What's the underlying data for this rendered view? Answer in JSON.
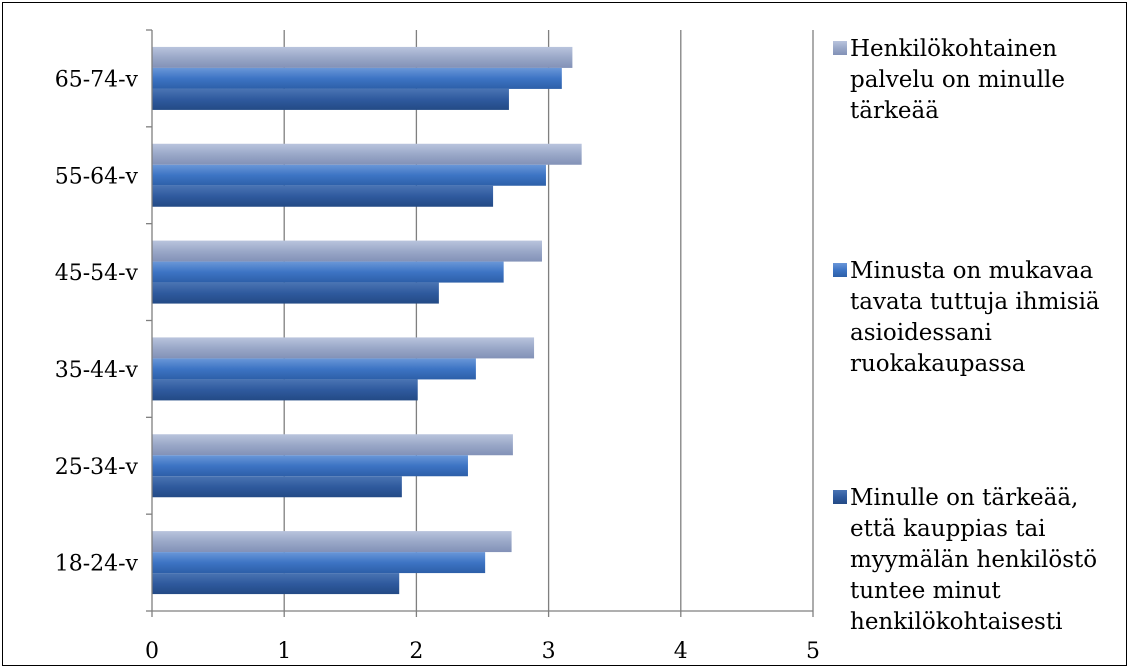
{
  "chart_data": {
    "type": "bar",
    "orientation": "horizontal",
    "categories": [
      "18-24-v",
      "25-34-v",
      "35-44-v",
      "45-54-v",
      "55-64-v",
      "65-74-v"
    ],
    "series": [
      {
        "name": "Henkilökohtainen palvelu on minulle tärkeää",
        "legend_lines": [
          "Henkilökohtainen",
          "palvelu on minulle",
          "tärkeää"
        ],
        "color": "#9aa8c8",
        "values": [
          2.72,
          2.73,
          2.89,
          2.95,
          3.25,
          3.18
        ]
      },
      {
        "name": "Minusta on mukavaa tavata tuttuja ihmisiä asioidessani ruokakaupassa",
        "legend_lines": [
          "Minusta on mukavaa",
          "tavata tuttuja ihmisiä",
          "asioidessani",
          "ruokakaupassa"
        ],
        "color": "#3d74c4",
        "values": [
          2.52,
          2.39,
          2.45,
          2.66,
          2.98,
          3.1
        ]
      },
      {
        "name": "Minulle on tärkeää, että kauppias tai myymälän henkilöstö tuntee minut henkilökohtaisesti",
        "legend_lines": [
          "Minulle on tärkeää,",
          "että kauppias tai",
          "myymälän henkilöstö",
          "tuntee minut",
          "henkilökohtaisesti"
        ],
        "color": "#2f5a9e",
        "values": [
          1.87,
          1.89,
          2.01,
          2.17,
          2.58,
          2.7
        ]
      }
    ],
    "xlim": [
      0,
      5
    ],
    "xticks": [
      "0",
      "1",
      "2",
      "3",
      "4",
      "5"
    ],
    "grid": true,
    "legend_position": "right"
  }
}
